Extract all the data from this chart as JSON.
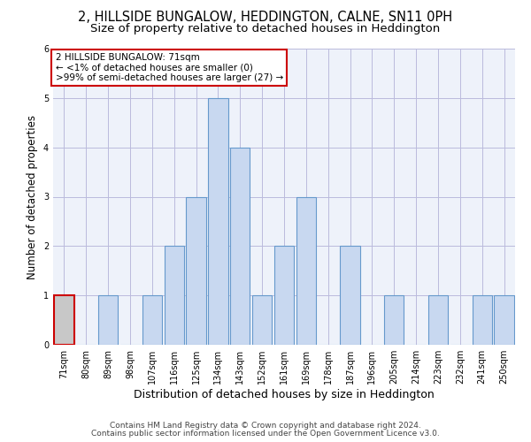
{
  "title": "2, HILLSIDE BUNGALOW, HEDDINGTON, CALNE, SN11 0PH",
  "subtitle": "Size of property relative to detached houses in Heddington",
  "xlabel": "Distribution of detached houses by size in Heddington",
  "ylabel": "Number of detached properties",
  "categories": [
    "71sqm",
    "80sqm",
    "89sqm",
    "98sqm",
    "107sqm",
    "116sqm",
    "125sqm",
    "134sqm",
    "143sqm",
    "152sqm",
    "161sqm",
    "169sqm",
    "178sqm",
    "187sqm",
    "196sqm",
    "205sqm",
    "214sqm",
    "223sqm",
    "232sqm",
    "241sqm",
    "250sqm"
  ],
  "values": [
    1,
    0,
    1,
    0,
    1,
    2,
    3,
    5,
    4,
    1,
    2,
    3,
    0,
    2,
    0,
    1,
    0,
    1,
    0,
    1,
    1
  ],
  "bar_color": "#c8d8f0",
  "bar_edge_color": "#6699cc",
  "highlight_index": 0,
  "highlight_fill_color": "#c8c8c8",
  "highlight_edge_color": "#cc0000",
  "ylim": [
    0,
    6
  ],
  "yticks": [
    0,
    1,
    2,
    3,
    4,
    5,
    6
  ],
  "annotation_lines": [
    "2 HILLSIDE BUNGALOW: 71sqm",
    "← <1% of detached houses are smaller (0)",
    ">99% of semi-detached houses are larger (27) →"
  ],
  "annotation_box_color": "#ffffff",
  "annotation_box_edge_color": "#cc0000",
  "footer_line1": "Contains HM Land Registry data © Crown copyright and database right 2024.",
  "footer_line2": "Contains public sector information licensed under the Open Government Licence v3.0.",
  "background_color": "#ffffff",
  "plot_background_color": "#eef2fa",
  "grid_color": "#bbbbdd",
  "title_fontsize": 10.5,
  "subtitle_fontsize": 9.5,
  "ylabel_fontsize": 8.5,
  "xlabel_fontsize": 9,
  "tick_fontsize": 7,
  "footer_fontsize": 6.5,
  "annotation_fontsize": 7.5
}
